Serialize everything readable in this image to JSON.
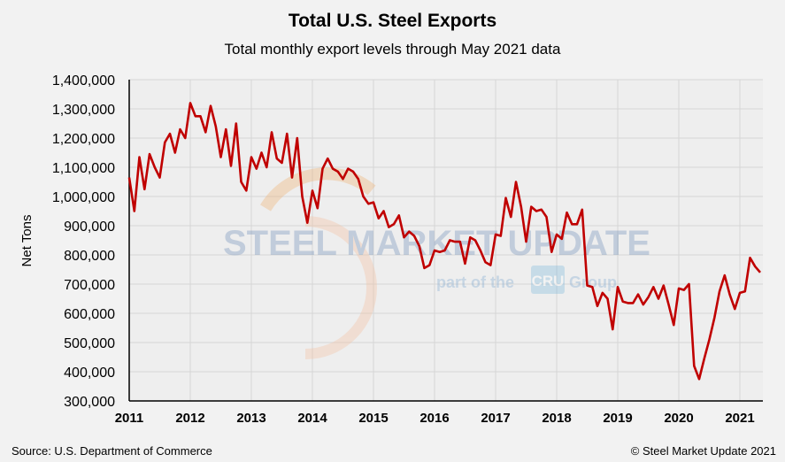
{
  "chart_data": {
    "type": "line",
    "title": "Total U.S. Steel Exports",
    "subtitle": "Total monthly export levels through May 2021 data",
    "ylabel": "Net Tons",
    "xlabel": "",
    "ylim": [
      300000,
      1400000
    ],
    "yticks": [
      "300,000",
      "400,000",
      "500,000",
      "600,000",
      "700,000",
      "800,000",
      "900,000",
      "1,000,000",
      "1,100,000",
      "1,200,000",
      "1,300,000",
      "1,400,000"
    ],
    "xticks": [
      "2011",
      "2012",
      "2013",
      "2014",
      "2015",
      "2016",
      "2017",
      "2018",
      "2019",
      "2020",
      "2021"
    ],
    "x_start": "Jan 2011",
    "x_end": "May 2021",
    "grid": true,
    "line_color": "#c00000",
    "series": [
      {
        "values": [
          1065000,
          950000,
          1135000,
          1025000,
          1145000,
          1100000,
          1065000,
          1185000,
          1215000,
          1150000,
          1230000,
          1200000,
          1320000,
          1275000,
          1275000,
          1220000,
          1310000,
          1240000,
          1135000,
          1230000,
          1105000,
          1250000,
          1050000,
          1020000,
          1135000,
          1095000,
          1150000,
          1100000,
          1220000,
          1130000,
          1115000,
          1215000,
          1065000,
          1200000,
          1000000,
          910000,
          1020000,
          960000,
          1095000,
          1130000,
          1095000,
          1085000,
          1060000,
          1095000,
          1085000,
          1060000,
          1000000,
          975000,
          980000,
          925000,
          950000,
          895000,
          905000,
          935000,
          860000,
          880000,
          865000,
          830000,
          755000,
          765000,
          815000,
          810000,
          815000,
          850000,
          845000,
          845000,
          770000,
          860000,
          850000,
          815000,
          775000,
          765000,
          870000,
          865000,
          995000,
          930000,
          1050000,
          965000,
          845000,
          965000,
          950000,
          955000,
          930000,
          810000,
          870000,
          855000,
          945000,
          905000,
          905000,
          955000,
          695000,
          690000,
          625000,
          670000,
          650000,
          545000,
          690000,
          640000,
          635000,
          635000,
          665000,
          630000,
          655000,
          690000,
          650000,
          695000,
          630000,
          560000,
          685000,
          680000,
          700000,
          420000,
          375000,
          445000,
          510000,
          585000,
          675000,
          730000,
          665000,
          615000,
          670000,
          675000,
          790000,
          760000,
          740000
        ]
      }
    ]
  },
  "watermark": {
    "main": "STEEL MARKET UPDATE",
    "sub_left": "part of the",
    "logo": "CRU",
    "sub_right": "Group"
  },
  "footer": {
    "source": "Source: U.S. Department of Commerce",
    "copyright": "© Steel Market Update 2021"
  }
}
